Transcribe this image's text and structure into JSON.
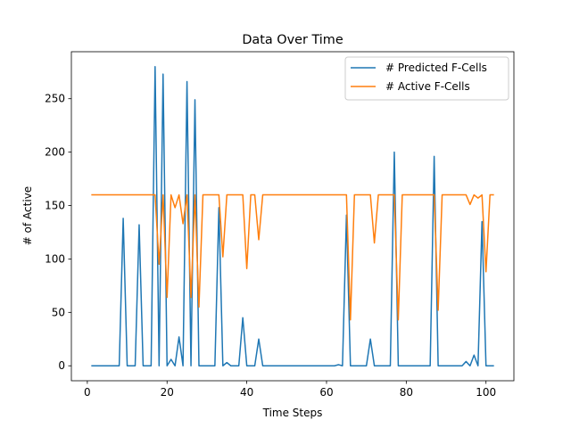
{
  "chart_data": {
    "type": "line",
    "title": "Data Over Time",
    "xlabel": "Time Steps",
    "ylabel": "# of Active",
    "xlim": [
      -4,
      107
    ],
    "ylim": [
      -14,
      294
    ],
    "xticks": [
      0,
      20,
      40,
      60,
      80,
      100
    ],
    "yticks": [
      0,
      50,
      100,
      150,
      200,
      250
    ],
    "grid": false,
    "legend": "top-right",
    "x": [
      1,
      2,
      3,
      4,
      5,
      6,
      7,
      8,
      9,
      10,
      11,
      12,
      13,
      14,
      15,
      16,
      17,
      18,
      19,
      20,
      21,
      22,
      23,
      24,
      25,
      26,
      27,
      28,
      29,
      30,
      31,
      32,
      33,
      34,
      35,
      36,
      37,
      38,
      39,
      40,
      41,
      42,
      43,
      44,
      45,
      46,
      47,
      48,
      49,
      50,
      51,
      52,
      53,
      54,
      55,
      56,
      57,
      58,
      59,
      60,
      61,
      62,
      63,
      64,
      65,
      66,
      67,
      68,
      69,
      70,
      71,
      72,
      73,
      74,
      75,
      76,
      77,
      78,
      79,
      80,
      81,
      82,
      83,
      84,
      85,
      86,
      87,
      88,
      89,
      90,
      91,
      92,
      93,
      94,
      95,
      96,
      97,
      98,
      99,
      100,
      101,
      102
    ],
    "series": [
      {
        "name": "# Predicted F-Cells",
        "color": "#1f77b4",
        "values": [
          0,
          0,
          0,
          0,
          0,
          0,
          0,
          0,
          138,
          0,
          0,
          0,
          132,
          0,
          0,
          0,
          280,
          0,
          273,
          0,
          6,
          0,
          27,
          0,
          266,
          0,
          249,
          0,
          0,
          0,
          0,
          0,
          148,
          0,
          3,
          0,
          0,
          0,
          45,
          0,
          0,
          0,
          25,
          0,
          0,
          0,
          0,
          0,
          0,
          0,
          0,
          0,
          0,
          0,
          0,
          0,
          0,
          0,
          0,
          0,
          0,
          0,
          1,
          0,
          141,
          0,
          0,
          0,
          0,
          0,
          25,
          0,
          0,
          0,
          0,
          0,
          200,
          0,
          0,
          0,
          0,
          0,
          0,
          0,
          0,
          0,
          196,
          0,
          0,
          0,
          0,
          0,
          0,
          0,
          4,
          0,
          10,
          0,
          135,
          0,
          0,
          0
        ]
      },
      {
        "name": "# Active F-Cells",
        "color": "#ff7f0e",
        "values": [
          160,
          160,
          160,
          160,
          160,
          160,
          160,
          160,
          160,
          160,
          160,
          160,
          160,
          160,
          160,
          160,
          160,
          95,
          160,
          64,
          160,
          148,
          160,
          133,
          160,
          64,
          160,
          55,
          160,
          160,
          160,
          160,
          160,
          102,
          160,
          160,
          160,
          160,
          160,
          91,
          160,
          160,
          118,
          160,
          160,
          160,
          160,
          160,
          160,
          160,
          160,
          160,
          160,
          160,
          160,
          160,
          160,
          160,
          160,
          160,
          160,
          160,
          160,
          160,
          160,
          43,
          160,
          160,
          160,
          160,
          160,
          115,
          160,
          160,
          160,
          160,
          160,
          43,
          160,
          160,
          160,
          160,
          160,
          160,
          160,
          160,
          160,
          52,
          160,
          160,
          160,
          160,
          160,
          160,
          160,
          151,
          160,
          157,
          160,
          88,
          160,
          160
        ]
      }
    ]
  }
}
